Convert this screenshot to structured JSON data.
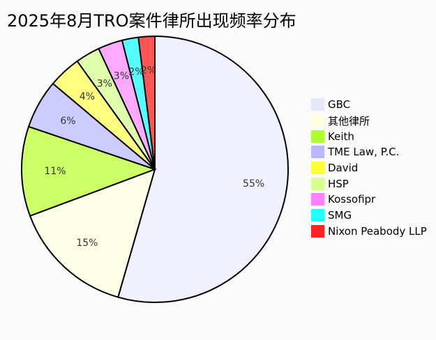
{
  "chart_data": {
    "type": "pie",
    "title": "2025年8月TRO案件律所出现频率分布",
    "legend_position": "right",
    "start_angle": "top",
    "direction": "clockwise",
    "slices": [
      {
        "name": "GBC",
        "value": 55,
        "label": "55%",
        "color": "#f0f0ff"
      },
      {
        "name": "其他律所",
        "value": 15,
        "label": "15%",
        "color": "#ffffe8"
      },
      {
        "name": "Keith",
        "value": 11,
        "label": "11%",
        "color": "#ccff66"
      },
      {
        "name": "TME Law, P.C.",
        "value": 6,
        "label": "6%",
        "color": "#ccccff"
      },
      {
        "name": "David",
        "value": 4,
        "label": "4%",
        "color": "#ffff80"
      },
      {
        "name": "HSP",
        "value": 3,
        "label": "3%",
        "color": "#e0ffaa"
      },
      {
        "name": "Kossofipr",
        "value": 3,
        "label": "3%",
        "color": "#ffaaff"
      },
      {
        "name": "SMG",
        "value": 2,
        "label": "2%",
        "color": "#55ffff"
      },
      {
        "name": "Nixon Peabody LLP",
        "value": 2,
        "label": "2%",
        "color": "#ff5555"
      }
    ],
    "legend_swatch_colors": [
      "#e6e6fa",
      "#ffffe0",
      "#adff2f",
      "#b8b8ff",
      "#ffff33",
      "#d8ff8a",
      "#ff80ff",
      "#22ffff",
      "#ff2222"
    ]
  }
}
